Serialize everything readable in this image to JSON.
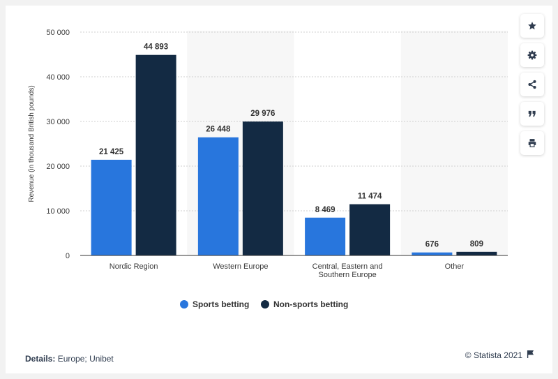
{
  "chart_data": {
    "type": "bar",
    "categories": [
      "Nordic Region",
      "Western Europe",
      "Central, Eastern and Southern Europe",
      "Other"
    ],
    "category_lines": [
      [
        "Nordic Region"
      ],
      [
        "Western Europe"
      ],
      [
        "Central, Eastern and",
        "Southern Europe"
      ],
      [
        "Other"
      ]
    ],
    "series": [
      {
        "name": "Sports betting",
        "values": [
          21425,
          26448,
          8469,
          676
        ],
        "labels": [
          "21 425",
          "26 448",
          "8 469",
          "676"
        ],
        "color": "#2876dd"
      },
      {
        "name": "Non-sports betting",
        "values": [
          44893,
          29976,
          11474,
          809
        ],
        "labels": [
          "44 893",
          "29 976",
          "11 474",
          "809"
        ],
        "color": "#132a43"
      }
    ],
    "ylabel": "Revenue (in thousand British pounds)",
    "ylim": [
      0,
      50000
    ],
    "yticks": [
      0,
      10000,
      20000,
      30000,
      40000,
      50000
    ],
    "ytick_labels": [
      "0",
      "10 000",
      "20 000",
      "30 000",
      "40 000",
      "50 000"
    ],
    "grid": true,
    "legend_position": "bottom-center",
    "alternating_band_color": "#f7f7f7"
  },
  "footer": {
    "details_label": "Details:",
    "details_value": "Europe; Unibet",
    "credit": "© Statista 2021"
  },
  "toolbar": [
    {
      "icon": "star-icon",
      "name": "favorite-button"
    },
    {
      "icon": "gear-icon",
      "name": "settings-button"
    },
    {
      "icon": "share-icon",
      "name": "share-button"
    },
    {
      "icon": "quote-icon",
      "name": "cite-button"
    },
    {
      "icon": "print-icon",
      "name": "print-button"
    }
  ]
}
